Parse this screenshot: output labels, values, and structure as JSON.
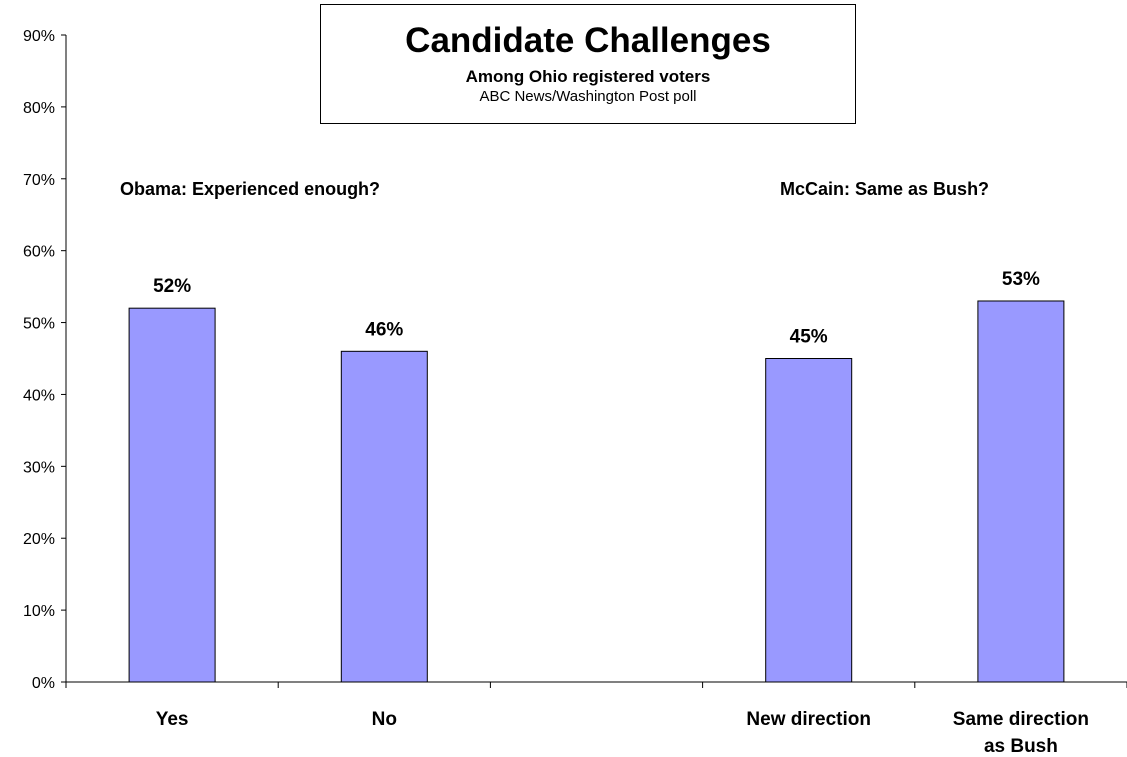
{
  "chart_data": {
    "type": "bar",
    "title": "Candidate Challenges",
    "subtitle": "Among Ohio registered voters",
    "source": "ABC News/Washington Post poll",
    "categories": [
      "Yes",
      "No",
      "",
      "New direction",
      "Same direction as Bush"
    ],
    "category_lines": [
      [
        "Yes"
      ],
      [
        "No"
      ],
      [],
      [
        "New direction"
      ],
      [
        "Same direction",
        "as Bush"
      ]
    ],
    "values": [
      52,
      46,
      null,
      45,
      53
    ],
    "data_labels": [
      "52%",
      "46%",
      "",
      "45%",
      "53%"
    ],
    "groups": [
      {
        "label": "Obama: Experienced enough?",
        "categories": [
          "Yes",
          "No"
        ]
      },
      {
        "label": "McCain: Same as Bush?",
        "categories": [
          "New direction",
          "Same direction as Bush"
        ]
      }
    ],
    "ylim": [
      0,
      90
    ],
    "y_ticks": [
      0,
      10,
      20,
      30,
      40,
      50,
      60,
      70,
      80,
      90
    ],
    "y_tick_labels": [
      "0%",
      "10%",
      "20%",
      "30%",
      "40%",
      "50%",
      "60%",
      "70%",
      "80%",
      "90%"
    ],
    "grid": false,
    "legend": "none",
    "bar_color": "#9999ff",
    "bar_border_color": "#000000"
  }
}
